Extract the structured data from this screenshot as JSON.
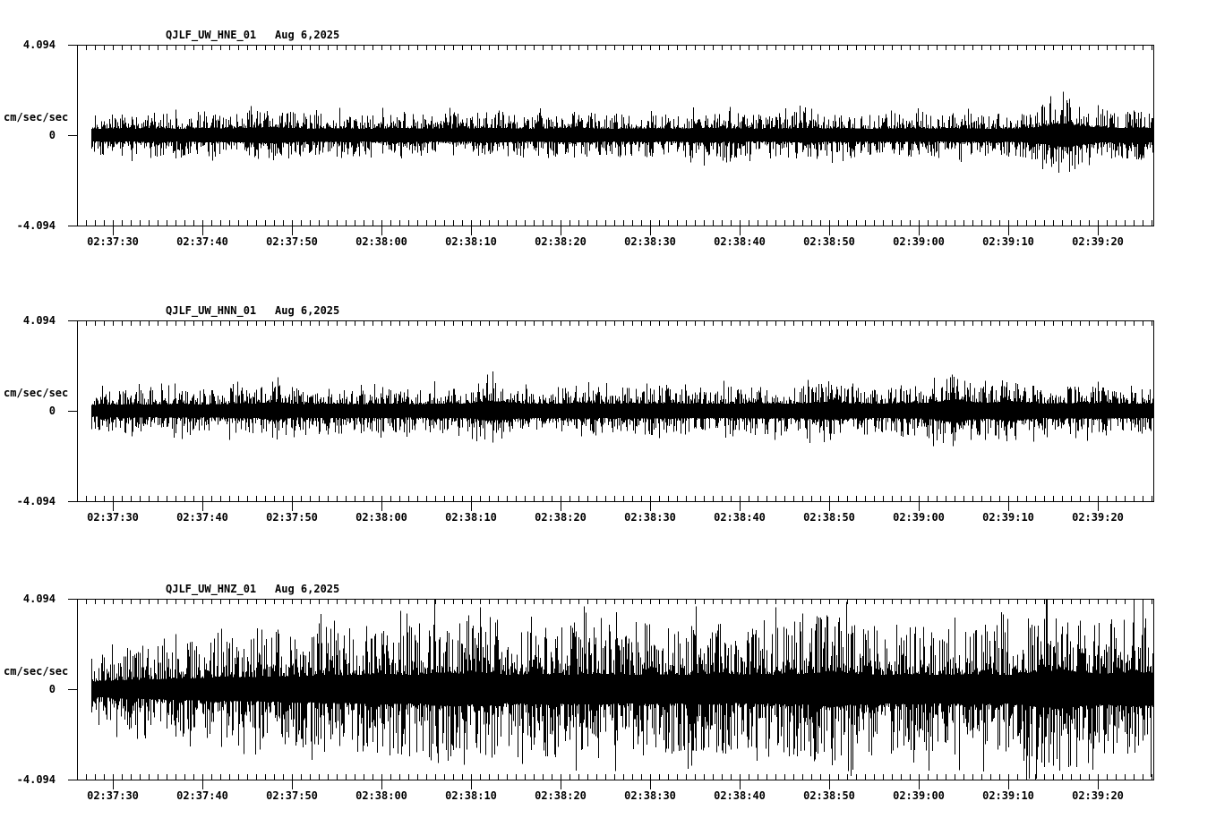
{
  "app": {
    "name": "seismogram-display",
    "background": "#ffffff",
    "trace_color": "#000000",
    "text_color": "#000000"
  },
  "chart_data": [
    {
      "type": "line",
      "subtype": "seismogram",
      "station": "QJLF_UW_HNE_01",
      "date": "Aug 6,2025",
      "ylabel": "cm/sec/sec",
      "ylim": [
        -4.094,
        4.094
      ],
      "y_tick_labels": [
        "4.094",
        "0",
        "-4.094"
      ],
      "x_tick_labels": [
        "02:37:30",
        "02:37:40",
        "02:37:50",
        "02:38:00",
        "02:38:10",
        "02:38:20",
        "02:38:30",
        "02:38:40",
        "02:38:50",
        "02:39:00",
        "02:39:10",
        "02:39:20"
      ],
      "x_major_tick_sec": 10,
      "x_minor_tick_sec": 1,
      "duration_sec": 120,
      "envelope_step_sec": 2,
      "envelope_cm_per_sec2": [
        0.85,
        0.95,
        1.0,
        0.95,
        1.05,
        1.0,
        0.95,
        1.1,
        1.0,
        1.05,
        1.15,
        1.2,
        1.05,
        0.95,
        1.0,
        1.05,
        0.95,
        1.0,
        1.1,
        1.0,
        0.95,
        1.05,
        1.0,
        1.1,
        1.05,
        0.95,
        1.0,
        1.05,
        1.1,
        1.0,
        0.95,
        1.0,
        1.05,
        0.95,
        1.0,
        1.1,
        1.05,
        1.0,
        0.95,
        1.0,
        1.05,
        1.1,
        1.0,
        1.05,
        0.95,
        1.0,
        1.05,
        1.0,
        0.95,
        1.05,
        1.0,
        0.95,
        1.0,
        1.05,
        1.35,
        1.8,
        1.45,
        1.1,
        1.05,
        1.15,
        1.1
      ],
      "texture": {
        "core_frac": 0.3,
        "shape": 2.6,
        "spike_prob": 0.04,
        "seed": 101
      }
    },
    {
      "type": "line",
      "subtype": "seismogram",
      "station": "QJLF_UW_HNN_01",
      "date": "Aug 6,2025",
      "ylabel": "cm/sec/sec",
      "ylim": [
        -4.094,
        4.094
      ],
      "y_tick_labels": [
        "4.094",
        "0",
        "-4.094"
      ],
      "x_tick_labels": [
        "02:37:30",
        "02:37:40",
        "02:37:50",
        "02:38:00",
        "02:38:10",
        "02:38:20",
        "02:38:30",
        "02:38:40",
        "02:38:50",
        "02:39:00",
        "02:39:10",
        "02:39:20"
      ],
      "x_major_tick_sec": 10,
      "x_minor_tick_sec": 1,
      "duration_sec": 120,
      "envelope_step_sec": 2,
      "envelope_cm_per_sec2": [
        0.8,
        0.9,
        0.95,
        1.0,
        0.95,
        1.0,
        1.05,
        0.95,
        1.0,
        1.1,
        1.05,
        1.4,
        1.05,
        1.0,
        1.1,
        1.05,
        1.0,
        1.1,
        1.05,
        1.0,
        1.1,
        1.05,
        1.15,
        1.5,
        1.3,
        1.1,
        1.05,
        1.1,
        1.2,
        1.1,
        1.05,
        1.15,
        1.1,
        1.2,
        1.1,
        1.05,
        1.1,
        1.05,
        1.15,
        1.1,
        1.05,
        1.2,
        1.35,
        1.15,
        1.1,
        1.05,
        1.2,
        1.1,
        1.35,
        1.7,
        1.3,
        1.2,
        1.5,
        1.25,
        1.1,
        1.15,
        1.1,
        1.2,
        1.1,
        1.05,
        1.1
      ],
      "texture": {
        "core_frac": 0.3,
        "shape": 2.6,
        "spike_prob": 0.04,
        "seed": 202
      }
    },
    {
      "type": "line",
      "subtype": "seismogram",
      "station": "QJLF_UW_HNZ_01",
      "date": "Aug 6,2025",
      "ylabel": "cm/sec/sec",
      "ylim": [
        -4.094,
        4.094
      ],
      "y_tick_labels": [
        "4.094",
        "0",
        "-4.094"
      ],
      "x_tick_labels": [
        "02:37:30",
        "02:37:40",
        "02:37:50",
        "02:38:00",
        "02:38:10",
        "02:38:20",
        "02:38:30",
        "02:38:40",
        "02:38:50",
        "02:39:00",
        "02:39:10",
        "02:39:20"
      ],
      "x_major_tick_sec": 10,
      "x_minor_tick_sec": 1,
      "duration_sec": 120,
      "envelope_step_sec": 2,
      "envelope_cm_per_sec2": [
        1.4,
        1.6,
        1.8,
        1.9,
        2.0,
        2.1,
        2.2,
        2.3,
        2.4,
        2.45,
        2.5,
        2.6,
        2.55,
        2.7,
        2.9,
        2.8,
        3.0,
        3.2,
        3.0,
        2.9,
        3.4,
        3.3,
        3.1,
        3.35,
        2.9,
        3.0,
        3.1,
        2.9,
        3.0,
        3.2,
        3.0,
        2.9,
        3.1,
        3.0,
        2.9,
        3.1,
        3.0,
        2.8,
        2.9,
        3.0,
        3.1,
        3.2,
        3.6,
        3.3,
        3.0,
        2.9,
        3.0,
        3.1,
        2.9,
        3.0,
        3.1,
        3.0,
        2.9,
        3.3,
        3.7,
        3.95,
        3.5,
        3.2,
        3.3,
        3.5,
        3.4
      ],
      "texture": {
        "core_frac": 0.22,
        "shape": 2.4,
        "spike_prob": 0.05,
        "seed": 303
      }
    }
  ]
}
